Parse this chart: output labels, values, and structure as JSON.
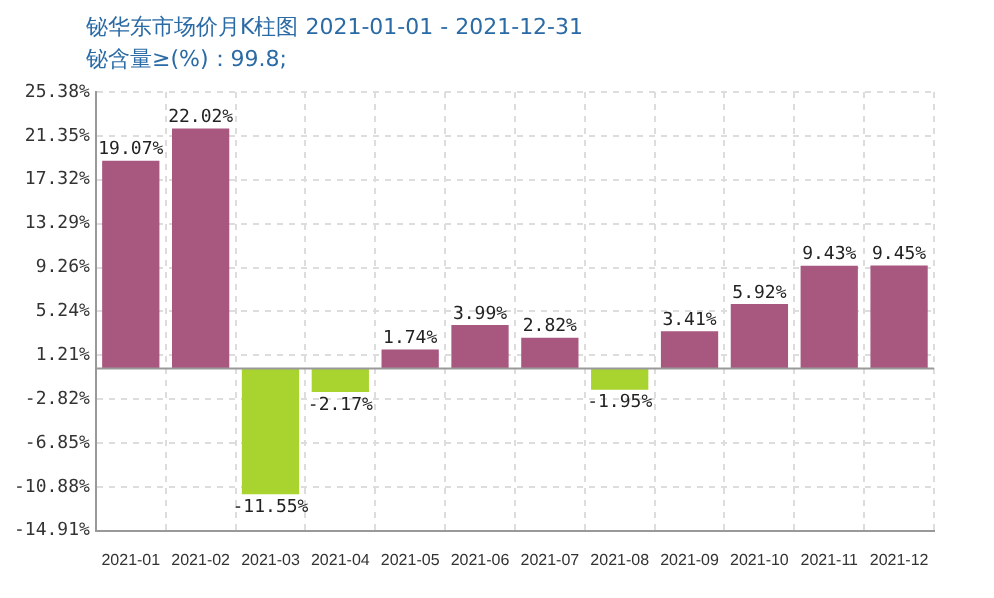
{
  "chart_data": {
    "type": "bar",
    "title": "铋华东市场价月K柱图 2021-01-01 - 2021-12-31",
    "subtitle": "铋含量≥(%)：99.8;",
    "categories": [
      "2021-01",
      "2021-02",
      "2021-03",
      "2021-04",
      "2021-05",
      "2021-06",
      "2021-07",
      "2021-08",
      "2021-09",
      "2021-10",
      "2021-11",
      "2021-12"
    ],
    "values": [
      19.07,
      22.02,
      -11.55,
      -2.17,
      1.74,
      3.99,
      2.82,
      -1.95,
      3.41,
      5.92,
      9.43,
      9.45
    ],
    "value_labels": [
      "19.07%",
      "22.02%",
      "-11.55%",
      "-2.17%",
      "1.74%",
      "3.99%",
      "2.82%",
      "-1.95%",
      "3.41%",
      "5.92%",
      "9.43%",
      "9.45%"
    ],
    "colors": [
      "#a8577f",
      "#a8577f",
      "#a9d430",
      "#a9d430",
      "#a8577f",
      "#a8577f",
      "#a8577f",
      "#a9d430",
      "#a8577f",
      "#a8577f",
      "#a8577f",
      "#a8577f"
    ],
    "ylim": [
      -14.91,
      25.38
    ],
    "yticks": [
      {
        "value": -14.91,
        "label": "-14.91%"
      },
      {
        "value": -10.88,
        "label": "-10.88%"
      },
      {
        "value": -6.85,
        "label": "-6.85%"
      },
      {
        "value": -2.82,
        "label": "-2.82%"
      },
      {
        "value": 1.21,
        "label": "1.21%"
      },
      {
        "value": 5.24,
        "label": "5.24%"
      },
      {
        "value": 9.26,
        "label": "9.26%"
      },
      {
        "value": 13.29,
        "label": "13.29%"
      },
      {
        "value": 17.32,
        "label": "17.32%"
      },
      {
        "value": 21.35,
        "label": "21.35%"
      },
      {
        "value": 25.38,
        "label": "25.38%"
      }
    ],
    "grid": true
  }
}
